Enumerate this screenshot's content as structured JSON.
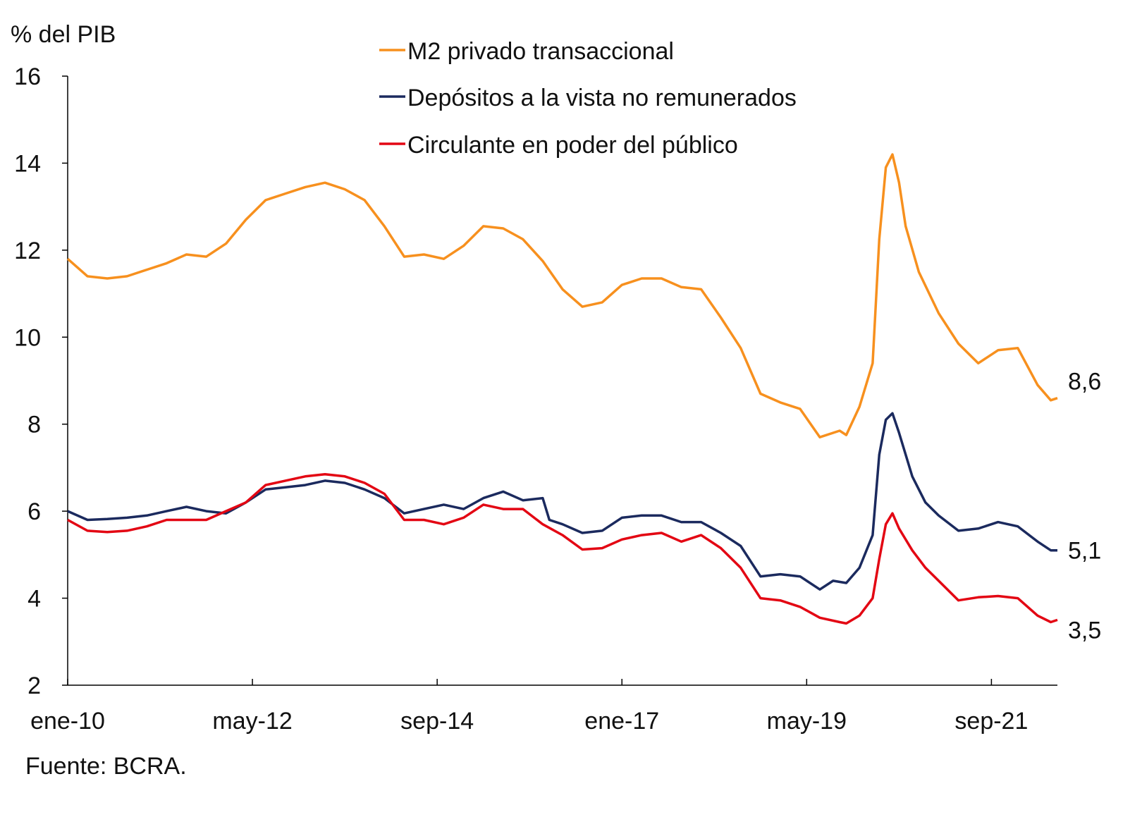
{
  "chart_data": {
    "type": "line",
    "ylabel": "% del PIB",
    "ylim": [
      2,
      16
    ],
    "yticks": [
      "2",
      "4",
      "6",
      "8",
      "10",
      "12",
      "14",
      "16"
    ],
    "xticks": [
      {
        "date": "2010-01",
        "label": "ene-10"
      },
      {
        "date": "2012-05",
        "label": "may-12"
      },
      {
        "date": "2014-09",
        "label": "sep-14"
      },
      {
        "date": "2017-01",
        "label": "ene-17"
      },
      {
        "date": "2019-05",
        "label": "may-19"
      },
      {
        "date": "2021-09",
        "label": "sep-21"
      }
    ],
    "xrange": [
      "2010-01",
      "2022-07"
    ],
    "grid": false,
    "legend_position": "top-center",
    "source": "Fuente: BCRA.",
    "series": [
      {
        "name": "M2 privado transaccional",
        "color": "#F7901E",
        "end_label": "8,6",
        "points": [
          [
            "2010-01",
            11.8
          ],
          [
            "2010-04",
            11.4
          ],
          [
            "2010-07",
            11.35
          ],
          [
            "2010-10",
            11.4
          ],
          [
            "2011-01",
            11.55
          ],
          [
            "2011-04",
            11.7
          ],
          [
            "2011-07",
            11.9
          ],
          [
            "2011-10",
            11.85
          ],
          [
            "2012-01",
            12.15
          ],
          [
            "2012-04",
            12.7
          ],
          [
            "2012-07",
            13.15
          ],
          [
            "2012-10",
            13.3
          ],
          [
            "2013-01",
            13.45
          ],
          [
            "2013-04",
            13.55
          ],
          [
            "2013-07",
            13.4
          ],
          [
            "2013-10",
            13.15
          ],
          [
            "2014-01",
            12.55
          ],
          [
            "2014-04",
            11.85
          ],
          [
            "2014-07",
            11.9
          ],
          [
            "2014-10",
            11.8
          ],
          [
            "2015-01",
            12.1
          ],
          [
            "2015-04",
            12.55
          ],
          [
            "2015-07",
            12.5
          ],
          [
            "2015-10",
            12.25
          ],
          [
            "2016-01",
            11.75
          ],
          [
            "2016-04",
            11.1
          ],
          [
            "2016-07",
            10.7
          ],
          [
            "2016-10",
            10.8
          ],
          [
            "2017-01",
            11.2
          ],
          [
            "2017-04",
            11.35
          ],
          [
            "2017-07",
            11.35
          ],
          [
            "2017-10",
            11.15
          ],
          [
            "2018-01",
            11.1
          ],
          [
            "2018-04",
            10.45
          ],
          [
            "2018-07",
            9.75
          ],
          [
            "2018-10",
            8.7
          ],
          [
            "2019-01",
            8.5
          ],
          [
            "2019-04",
            8.35
          ],
          [
            "2019-07",
            7.7
          ],
          [
            "2019-10",
            7.85
          ],
          [
            "2019-11",
            7.75
          ],
          [
            "2020-01",
            8.4
          ],
          [
            "2020-03",
            9.4
          ],
          [
            "2020-04",
            12.25
          ],
          [
            "2020-05",
            13.9
          ],
          [
            "2020-06",
            14.2
          ],
          [
            "2020-07",
            13.55
          ],
          [
            "2020-08",
            12.55
          ],
          [
            "2020-10",
            11.5
          ],
          [
            "2021-01",
            10.55
          ],
          [
            "2021-04",
            9.85
          ],
          [
            "2021-07",
            9.4
          ],
          [
            "2021-10",
            9.7
          ],
          [
            "2022-01",
            9.75
          ],
          [
            "2022-04",
            8.9
          ],
          [
            "2022-06",
            8.55
          ],
          [
            "2022-07",
            8.6
          ]
        ]
      },
      {
        "name": "Depósitos a la vista no remunerados",
        "color": "#1B2A5E",
        "end_label": "5,1",
        "points": [
          [
            "2010-01",
            6.0
          ],
          [
            "2010-04",
            5.8
          ],
          [
            "2010-07",
            5.82
          ],
          [
            "2010-10",
            5.85
          ],
          [
            "2011-01",
            5.9
          ],
          [
            "2011-04",
            6.0
          ],
          [
            "2011-07",
            6.1
          ],
          [
            "2011-10",
            6.0
          ],
          [
            "2012-01",
            5.95
          ],
          [
            "2012-04",
            6.2
          ],
          [
            "2012-07",
            6.5
          ],
          [
            "2012-10",
            6.55
          ],
          [
            "2013-01",
            6.6
          ],
          [
            "2013-04",
            6.7
          ],
          [
            "2013-07",
            6.65
          ],
          [
            "2013-10",
            6.5
          ],
          [
            "2014-01",
            6.3
          ],
          [
            "2014-04",
            5.95
          ],
          [
            "2014-07",
            6.05
          ],
          [
            "2014-10",
            6.15
          ],
          [
            "2015-01",
            6.05
          ],
          [
            "2015-04",
            6.3
          ],
          [
            "2015-07",
            6.45
          ],
          [
            "2015-10",
            6.25
          ],
          [
            "2016-01",
            6.3
          ],
          [
            "2016-02",
            5.8
          ],
          [
            "2016-04",
            5.7
          ],
          [
            "2016-07",
            5.5
          ],
          [
            "2016-10",
            5.55
          ],
          [
            "2017-01",
            5.85
          ],
          [
            "2017-04",
            5.9
          ],
          [
            "2017-07",
            5.9
          ],
          [
            "2017-10",
            5.75
          ],
          [
            "2018-01",
            5.75
          ],
          [
            "2018-04",
            5.5
          ],
          [
            "2018-07",
            5.2
          ],
          [
            "2018-10",
            4.5
          ],
          [
            "2019-01",
            4.55
          ],
          [
            "2019-04",
            4.5
          ],
          [
            "2019-07",
            4.2
          ],
          [
            "2019-09",
            4.4
          ],
          [
            "2019-11",
            4.35
          ],
          [
            "2020-01",
            4.7
          ],
          [
            "2020-03",
            5.45
          ],
          [
            "2020-04",
            7.3
          ],
          [
            "2020-05",
            8.1
          ],
          [
            "2020-06",
            8.25
          ],
          [
            "2020-07",
            7.8
          ],
          [
            "2020-09",
            6.8
          ],
          [
            "2020-11",
            6.2
          ],
          [
            "2021-01",
            5.9
          ],
          [
            "2021-04",
            5.55
          ],
          [
            "2021-07",
            5.6
          ],
          [
            "2021-10",
            5.75
          ],
          [
            "2022-01",
            5.65
          ],
          [
            "2022-04",
            5.3
          ],
          [
            "2022-06",
            5.1
          ],
          [
            "2022-07",
            5.1
          ]
        ]
      },
      {
        "name": "Circulante en poder del público",
        "color": "#E30613",
        "end_label": "3,5",
        "points": [
          [
            "2010-01",
            5.8
          ],
          [
            "2010-04",
            5.55
          ],
          [
            "2010-07",
            5.52
          ],
          [
            "2010-10",
            5.55
          ],
          [
            "2011-01",
            5.65
          ],
          [
            "2011-04",
            5.8
          ],
          [
            "2011-07",
            5.8
          ],
          [
            "2011-10",
            5.8
          ],
          [
            "2012-01",
            6.0
          ],
          [
            "2012-04",
            6.2
          ],
          [
            "2012-07",
            6.6
          ],
          [
            "2012-10",
            6.7
          ],
          [
            "2013-01",
            6.8
          ],
          [
            "2013-04",
            6.85
          ],
          [
            "2013-07",
            6.8
          ],
          [
            "2013-10",
            6.65
          ],
          [
            "2014-01",
            6.4
          ],
          [
            "2014-04",
            5.8
          ],
          [
            "2014-07",
            5.8
          ],
          [
            "2014-10",
            5.7
          ],
          [
            "2015-01",
            5.85
          ],
          [
            "2015-04",
            6.15
          ],
          [
            "2015-07",
            6.05
          ],
          [
            "2015-10",
            6.05
          ],
          [
            "2016-01",
            5.7
          ],
          [
            "2016-04",
            5.45
          ],
          [
            "2016-07",
            5.12
          ],
          [
            "2016-10",
            5.15
          ],
          [
            "2017-01",
            5.35
          ],
          [
            "2017-04",
            5.45
          ],
          [
            "2017-07",
            5.5
          ],
          [
            "2017-10",
            5.3
          ],
          [
            "2018-01",
            5.45
          ],
          [
            "2018-04",
            5.15
          ],
          [
            "2018-07",
            4.7
          ],
          [
            "2018-10",
            4.0
          ],
          [
            "2019-01",
            3.95
          ],
          [
            "2019-04",
            3.8
          ],
          [
            "2019-07",
            3.55
          ],
          [
            "2019-10",
            3.45
          ],
          [
            "2019-11",
            3.42
          ],
          [
            "2020-01",
            3.6
          ],
          [
            "2020-03",
            4.0
          ],
          [
            "2020-04",
            4.9
          ],
          [
            "2020-05",
            5.7
          ],
          [
            "2020-06",
            5.95
          ],
          [
            "2020-07",
            5.6
          ],
          [
            "2020-09",
            5.1
          ],
          [
            "2020-11",
            4.7
          ],
          [
            "2021-01",
            4.4
          ],
          [
            "2021-04",
            3.95
          ],
          [
            "2021-07",
            4.02
          ],
          [
            "2021-10",
            4.05
          ],
          [
            "2022-01",
            4.0
          ],
          [
            "2022-04",
            3.6
          ],
          [
            "2022-06",
            3.45
          ],
          [
            "2022-07",
            3.5
          ]
        ]
      }
    ]
  }
}
